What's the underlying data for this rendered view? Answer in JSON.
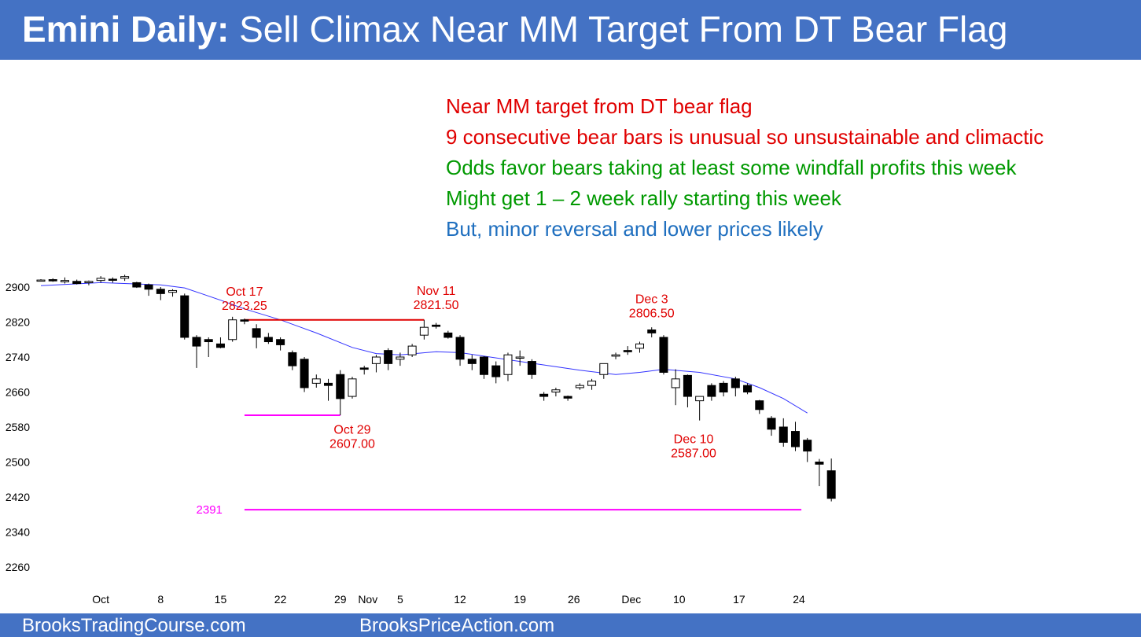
{
  "header": {
    "title_bold": "Emini Daily:",
    "title_rest": " Sell Climax Near MM Target From DT Bear Flag"
  },
  "notes": [
    {
      "text": "Near MM target from DT bear flag",
      "color": "#e00000"
    },
    {
      "text": "9 consecutive bear bars is unusual so unsustainable and climactic",
      "color": "#e00000"
    },
    {
      "text": "Odds favor bears taking at least some windfall profits this week",
      "color": "#009900"
    },
    {
      "text": "Might get 1 – 2 week rally starting this week",
      "color": "#009900"
    },
    {
      "text": "But, minor reversal and lower prices likely",
      "color": "#1f6fbf"
    }
  ],
  "footer": {
    "left": "BrooksTradingCourse.com",
    "right": "BrooksPriceAction.com"
  },
  "chart_data": {
    "type": "candlestick",
    "ylim": [
      2180,
      2960
    ],
    "yticks": [
      2260,
      2340,
      2420,
      2500,
      2580,
      2660,
      2740,
      2820,
      2900
    ],
    "xticks": [
      {
        "label": "Oct",
        "bar": 5
      },
      {
        "label": "8",
        "bar": 10
      },
      {
        "label": "15",
        "bar": 15
      },
      {
        "label": "22",
        "bar": 20
      },
      {
        "label": "29",
        "bar": 25
      },
      {
        "label": "Nov",
        "bar": 27.3
      },
      {
        "label": "5",
        "bar": 30
      },
      {
        "label": "12",
        "bar": 35
      },
      {
        "label": "19",
        "bar": 40
      },
      {
        "label": "26",
        "bar": 44.5
      },
      {
        "label": "Dec",
        "bar": 49.3
      },
      {
        "label": "10",
        "bar": 53.3
      },
      {
        "label": "17",
        "bar": 58.3
      },
      {
        "label": "24",
        "bar": 63.3
      }
    ],
    "candles": [
      [
        2915,
        2918,
        2913,
        2916
      ],
      [
        2917,
        2920,
        2912,
        2914
      ],
      [
        2912,
        2922,
        2908,
        2915
      ],
      [
        2913,
        2917,
        2906,
        2908
      ],
      [
        2910,
        2915,
        2904,
        2913
      ],
      [
        2915,
        2925,
        2910,
        2920
      ],
      [
        2918,
        2922,
        2910,
        2916
      ],
      [
        2920,
        2928,
        2914,
        2924
      ],
      [
        2910,
        2912,
        2898,
        2900
      ],
      [
        2905,
        2908,
        2880,
        2895
      ],
      [
        2895,
        2900,
        2870,
        2885
      ],
      [
        2888,
        2895,
        2878,
        2892
      ],
      [
        2880,
        2885,
        2780,
        2785
      ],
      [
        2785,
        2790,
        2715,
        2765
      ],
      [
        2780,
        2785,
        2740,
        2775
      ],
      [
        2770,
        2785,
        2760,
        2762
      ],
      [
        2780,
        2832,
        2775,
        2825
      ],
      [
        2825,
        2828,
        2815,
        2822
      ],
      [
        2805,
        2815,
        2760,
        2785
      ],
      [
        2785,
        2795,
        2770,
        2775
      ],
      [
        2780,
        2785,
        2755,
        2768
      ],
      [
        2750,
        2755,
        2710,
        2720
      ],
      [
        2735,
        2740,
        2660,
        2670
      ],
      [
        2680,
        2700,
        2670,
        2690
      ],
      [
        2680,
        2690,
        2640,
        2675
      ],
      [
        2700,
        2710,
        2607,
        2645
      ],
      [
        2650,
        2695,
        2645,
        2690
      ],
      [
        2715,
        2720,
        2700,
        2712
      ],
      [
        2725,
        2745,
        2705,
        2740
      ],
      [
        2755,
        2760,
        2710,
        2725
      ],
      [
        2735,
        2750,
        2720,
        2740
      ],
      [
        2745,
        2770,
        2740,
        2765
      ],
      [
        2790,
        2825,
        2780,
        2808
      ],
      [
        2813,
        2818,
        2805,
        2810
      ],
      [
        2795,
        2800,
        2782,
        2785
      ],
      [
        2785,
        2790,
        2720,
        2735
      ],
      [
        2735,
        2745,
        2710,
        2725
      ],
      [
        2740,
        2742,
        2690,
        2700
      ],
      [
        2720,
        2730,
        2680,
        2695
      ],
      [
        2700,
        2750,
        2685,
        2745
      ],
      [
        2740,
        2755,
        2720,
        2740
      ],
      [
        2730,
        2735,
        2690,
        2700
      ],
      [
        2655,
        2660,
        2640,
        2650
      ],
      [
        2660,
        2670,
        2650,
        2665
      ],
      [
        2650,
        2652,
        2640,
        2646
      ],
      [
        2670,
        2680,
        2665,
        2675
      ],
      [
        2675,
        2690,
        2665,
        2685
      ],
      [
        2700,
        2725,
        2690,
        2725
      ],
      [
        2742,
        2750,
        2735,
        2745
      ],
      [
        2755,
        2765,
        2745,
        2752
      ],
      [
        2760,
        2775,
        2750,
        2770
      ],
      [
        2802,
        2808,
        2785,
        2795
      ],
      [
        2785,
        2790,
        2700,
        2705
      ],
      [
        2670,
        2712,
        2630,
        2690
      ],
      [
        2698,
        2700,
        2625,
        2650
      ],
      [
        2640,
        2650,
        2595,
        2650
      ],
      [
        2675,
        2680,
        2640,
        2650
      ],
      [
        2680,
        2685,
        2650,
        2660
      ],
      [
        2690,
        2695,
        2650,
        2670
      ],
      [
        2675,
        2680,
        2655,
        2660
      ],
      [
        2640,
        2642,
        2610,
        2620
      ],
      [
        2600,
        2605,
        2560,
        2575
      ],
      [
        2580,
        2600,
        2535,
        2545
      ],
      [
        2570,
        2592,
        2525,
        2535
      ],
      [
        2550,
        2555,
        2500,
        2525
      ],
      [
        2500,
        2507,
        2445,
        2495
      ],
      [
        2480,
        2508,
        2410,
        2417
      ]
    ],
    "ema": [
      [
        0,
        2903
      ],
      [
        5,
        2910
      ],
      [
        10,
        2905
      ],
      [
        12,
        2898
      ],
      [
        15,
        2870
      ],
      [
        17,
        2850
      ],
      [
        20,
        2825
      ],
      [
        23,
        2795
      ],
      [
        26,
        2762
      ],
      [
        28,
        2748
      ],
      [
        30,
        2745
      ],
      [
        33,
        2752
      ],
      [
        35,
        2750
      ],
      [
        40,
        2730
      ],
      [
        45,
        2710
      ],
      [
        48,
        2700
      ],
      [
        50,
        2705
      ],
      [
        52,
        2712
      ],
      [
        55,
        2705
      ],
      [
        58,
        2690
      ],
      [
        60,
        2670
      ],
      [
        62,
        2645
      ],
      [
        64,
        2612
      ]
    ],
    "hlines": [
      {
        "y": 2825,
        "from": 17,
        "to": 32,
        "color": "#e00000"
      },
      {
        "y": 2607,
        "from": 17,
        "to": 25,
        "color": "#ff00ff"
      },
      {
        "y": 2391,
        "from": 17,
        "to": 63.5,
        "color": "#ff00ff",
        "label": "2391"
      }
    ],
    "annotations": [
      {
        "lines": [
          "Oct 17",
          "2823.25"
        ],
        "bar": 17,
        "y": 2880
      },
      {
        "lines": [
          "Nov 11",
          "2821.50"
        ],
        "bar": 33,
        "y": 2882
      },
      {
        "lines": [
          "Dec 3",
          "2806.50"
        ],
        "bar": 51,
        "y": 2863
      },
      {
        "lines": [
          "Oct 29",
          "2607.00"
        ],
        "bar": 26,
        "y": 2565
      },
      {
        "lines": [
          "Dec 10",
          "2587.00"
        ],
        "bar": 54.5,
        "y": 2543
      }
    ]
  }
}
